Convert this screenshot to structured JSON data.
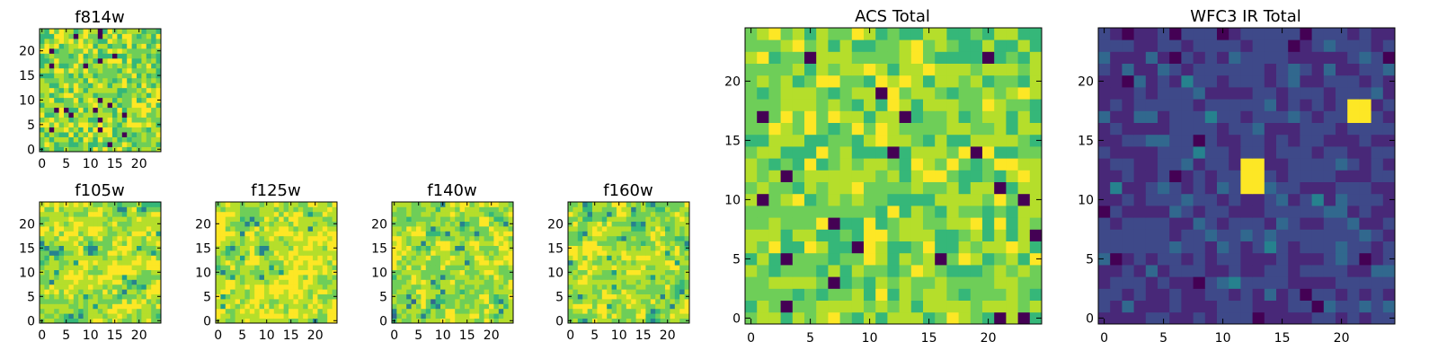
{
  "chart_data": [
    {
      "id": "f814w",
      "type": "heatmap",
      "title": "f814w",
      "size": 25,
      "xticks": [
        0,
        5,
        10,
        15,
        20
      ],
      "yticks": [
        0,
        5,
        10,
        15,
        20
      ],
      "xlim": [
        0,
        25
      ],
      "ylim": [
        0,
        25
      ],
      "colormap": "viridis",
      "description_level": 0.78,
      "spread": 0.16,
      "smooth": 0,
      "seed": 11,
      "hotspots": []
    },
    {
      "id": "f105w",
      "type": "heatmap",
      "title": "f105w",
      "size": 25,
      "xticks": [
        0,
        5,
        10,
        15,
        20
      ],
      "yticks": [
        0,
        5,
        10,
        15,
        20
      ],
      "xlim": [
        0,
        25
      ],
      "ylim": [
        0,
        25
      ],
      "colormap": "viridis",
      "description_level": 0.78,
      "spread": 0.22,
      "smooth": 1,
      "seed": 23,
      "hotspots": []
    },
    {
      "id": "f125w",
      "type": "heatmap",
      "title": "f125w",
      "size": 25,
      "xticks": [
        0,
        5,
        10,
        15,
        20
      ],
      "yticks": [
        0,
        5,
        10,
        15,
        20
      ],
      "xlim": [
        0,
        25
      ],
      "ylim": [
        0,
        25
      ],
      "colormap": "viridis",
      "description_level": 0.78,
      "spread": 0.22,
      "smooth": 1,
      "seed": 37,
      "hotspots": []
    },
    {
      "id": "f140w",
      "type": "heatmap",
      "title": "f140w",
      "size": 25,
      "xticks": [
        0,
        5,
        10,
        15,
        20
      ],
      "yticks": [
        0,
        5,
        10,
        15,
        20
      ],
      "xlim": [
        0,
        25
      ],
      "ylim": [
        0,
        25
      ],
      "colormap": "viridis",
      "description_level": 0.76,
      "spread": 0.22,
      "smooth": 1,
      "seed": 51,
      "hotspots": []
    },
    {
      "id": "f160w",
      "type": "heatmap",
      "title": "f160w",
      "size": 25,
      "xticks": [
        0,
        5,
        10,
        15,
        20
      ],
      "yticks": [
        0,
        5,
        10,
        15,
        20
      ],
      "xlim": [
        0,
        25
      ],
      "ylim": [
        0,
        25
      ],
      "colormap": "viridis",
      "description_level": 0.78,
      "spread": 0.22,
      "smooth": 1,
      "seed": 67,
      "hotspots": []
    },
    {
      "id": "acs_total",
      "type": "heatmap",
      "title": "ACS Total",
      "size": 25,
      "xticks": [
        0,
        5,
        10,
        15,
        20
      ],
      "yticks": [
        0,
        5,
        10,
        15,
        20
      ],
      "xlim": [
        0,
        25
      ],
      "ylim": [
        0,
        25
      ],
      "colormap": "viridis",
      "description_level": 0.78,
      "spread": 0.14,
      "smooth": 0,
      "seed": 83,
      "hotspots": []
    },
    {
      "id": "wfc3_ir_total",
      "type": "heatmap",
      "title": "WFC3 IR Total",
      "size": 25,
      "xticks": [
        0,
        5,
        10,
        15,
        20
      ],
      "yticks": [
        0,
        5,
        10,
        15,
        20
      ],
      "xlim": [
        0,
        25
      ],
      "ylim": [
        0,
        25
      ],
      "colormap": "viridis",
      "description_level": 0.22,
      "spread": 0.09,
      "smooth": 0,
      "seed": 97,
      "hotspots": [
        {
          "col": 12,
          "row": 11,
          "w": 2,
          "h": 3,
          "value": 1.0
        },
        {
          "col": 21,
          "row": 17,
          "w": 2,
          "h": 2,
          "value": 1.0
        }
      ]
    }
  ],
  "palette": {
    "viridis": [
      "#440154",
      "#482878",
      "#3e4989",
      "#31688e",
      "#26828e",
      "#1f9e89",
      "#35b779",
      "#6ece58",
      "#b5de2b",
      "#fde725"
    ]
  }
}
